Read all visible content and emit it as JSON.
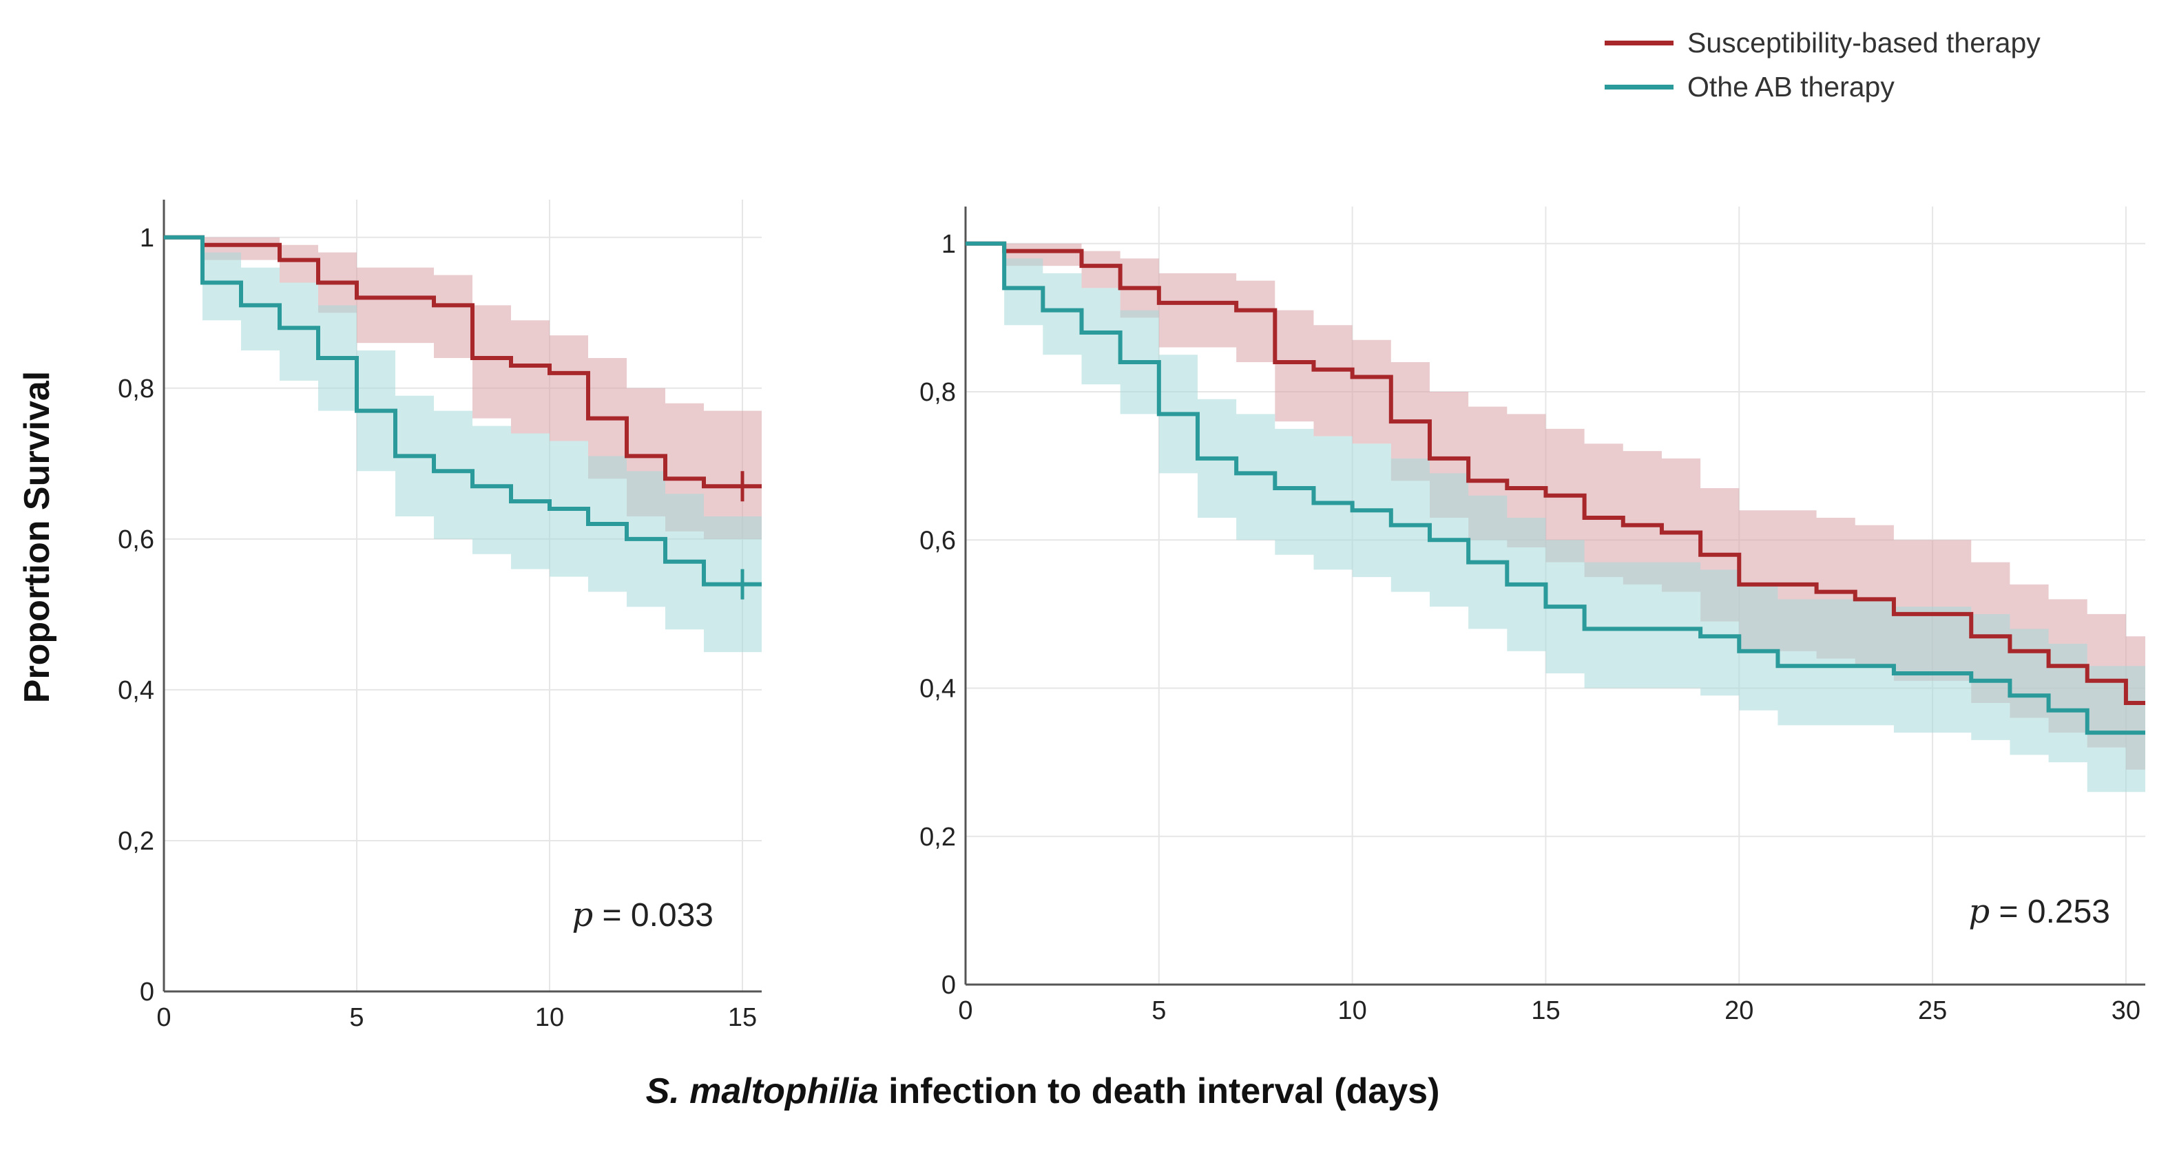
{
  "legend": {
    "items": [
      {
        "label": "Susceptibility-based therapy",
        "color": "#a8272b"
      },
      {
        "label": "Othe AB therapy",
        "color": "#2a9a9a"
      }
    ]
  },
  "ylabel": "Proportion Survival",
  "xlabel_italic": "S. maltophilia",
  "xlabel_rest": " infection to death interval (days)",
  "chart_data": [
    {
      "type": "line",
      "step": true,
      "title": "",
      "ylabel": "Proportion Survival",
      "xlim": [
        0,
        15.5
      ],
      "ylim": [
        0,
        1.05
      ],
      "xticks": [
        0,
        5,
        10,
        15
      ],
      "yticks": [
        0,
        0.2,
        0.4,
        0.6,
        0.8,
        1
      ],
      "ytick_labels": [
        "0",
        "0,2",
        "0,4",
        "0,6",
        "0,8",
        "1"
      ],
      "grid": true,
      "annotation": {
        "p": "p",
        "text": " = 0.033"
      },
      "series": [
        {
          "name": "Susceptibility-based therapy",
          "color": "#a8272b",
          "band": "#d9a3a8",
          "x": [
            0,
            1,
            3,
            4,
            5,
            7,
            8,
            9,
            10,
            11,
            12,
            13,
            14,
            15,
            15.5
          ],
          "y": [
            1,
            0.99,
            0.97,
            0.94,
            0.92,
            0.91,
            0.84,
            0.83,
            0.82,
            0.76,
            0.71,
            0.68,
            0.67,
            0.67,
            0.67
          ],
          "lower": [
            1,
            0.97,
            0.94,
            0.9,
            0.86,
            0.84,
            0.76,
            0.74,
            0.73,
            0.68,
            0.63,
            0.61,
            0.6,
            0.6,
            0.6
          ],
          "upper": [
            1,
            1,
            0.99,
            0.98,
            0.96,
            0.95,
            0.91,
            0.89,
            0.87,
            0.84,
            0.8,
            0.78,
            0.77,
            0.77,
            0.77
          ],
          "censored": [
            15
          ]
        },
        {
          "name": "Othe AB therapy",
          "color": "#2a9a9a",
          "band": "#a7d8d8",
          "x": [
            0,
            1,
            2,
            3,
            4,
            5,
            6,
            7,
            8,
            9,
            10,
            11,
            12,
            13,
            14,
            15,
            15.5
          ],
          "y": [
            1,
            0.94,
            0.91,
            0.88,
            0.84,
            0.77,
            0.71,
            0.69,
            0.67,
            0.65,
            0.64,
            0.62,
            0.6,
            0.57,
            0.54,
            0.54,
            0.54
          ],
          "lower": [
            1,
            0.89,
            0.85,
            0.81,
            0.77,
            0.69,
            0.63,
            0.6,
            0.58,
            0.56,
            0.55,
            0.53,
            0.51,
            0.48,
            0.45,
            0.45,
            0.45
          ],
          "upper": [
            1,
            0.98,
            0.96,
            0.94,
            0.91,
            0.85,
            0.79,
            0.77,
            0.75,
            0.74,
            0.73,
            0.71,
            0.69,
            0.66,
            0.63,
            0.63,
            0.63
          ],
          "censored": [
            15
          ]
        }
      ]
    },
    {
      "type": "line",
      "step": true,
      "title": "",
      "ylabel": "Proportion Survival",
      "xlim": [
        0,
        30.5
      ],
      "ylim": [
        0,
        1.05
      ],
      "xticks": [
        0,
        5,
        10,
        15,
        20,
        25,
        30
      ],
      "yticks": [
        0,
        0.2,
        0.4,
        0.6,
        0.8,
        1
      ],
      "ytick_labels": [
        "0",
        "0,2",
        "0,4",
        "0,6",
        "0,8",
        "1"
      ],
      "grid": true,
      "annotation": {
        "p": "p",
        "text": " = 0.253"
      },
      "series": [
        {
          "name": "Susceptibility-based therapy",
          "color": "#a8272b",
          "band": "#d9a3a8",
          "x": [
            0,
            1,
            3,
            4,
            5,
            7,
            8,
            9,
            10,
            11,
            12,
            13,
            14,
            15,
            16,
            17,
            18,
            19,
            20,
            22,
            23,
            24,
            26,
            27,
            28,
            29,
            30,
            30.5
          ],
          "y": [
            1,
            0.99,
            0.97,
            0.94,
            0.92,
            0.91,
            0.84,
            0.83,
            0.82,
            0.76,
            0.71,
            0.68,
            0.67,
            0.66,
            0.63,
            0.62,
            0.61,
            0.58,
            0.54,
            0.53,
            0.52,
            0.5,
            0.47,
            0.45,
            0.43,
            0.41,
            0.38,
            0.38
          ],
          "lower": [
            1,
            0.97,
            0.94,
            0.9,
            0.86,
            0.84,
            0.76,
            0.74,
            0.73,
            0.68,
            0.63,
            0.6,
            0.59,
            0.57,
            0.55,
            0.54,
            0.53,
            0.49,
            0.45,
            0.44,
            0.43,
            0.41,
            0.38,
            0.36,
            0.34,
            0.32,
            0.29,
            0.29
          ],
          "upper": [
            1,
            1,
            0.99,
            0.98,
            0.96,
            0.95,
            0.91,
            0.89,
            0.87,
            0.84,
            0.8,
            0.78,
            0.77,
            0.75,
            0.73,
            0.72,
            0.71,
            0.67,
            0.64,
            0.63,
            0.62,
            0.6,
            0.57,
            0.54,
            0.52,
            0.5,
            0.47,
            0.47
          ],
          "censored": []
        },
        {
          "name": "Othe AB therapy",
          "color": "#2a9a9a",
          "band": "#a7d8d8",
          "x": [
            0,
            1,
            2,
            3,
            4,
            5,
            6,
            7,
            8,
            9,
            10,
            11,
            12,
            13,
            14,
            15,
            16,
            19,
            20,
            21,
            22,
            24,
            26,
            27,
            28,
            29,
            30.5
          ],
          "y": [
            1,
            0.94,
            0.91,
            0.88,
            0.84,
            0.77,
            0.71,
            0.69,
            0.67,
            0.65,
            0.64,
            0.62,
            0.6,
            0.57,
            0.54,
            0.51,
            0.48,
            0.47,
            0.45,
            0.43,
            0.43,
            0.42,
            0.41,
            0.39,
            0.37,
            0.34,
            0.34
          ],
          "lower": [
            1,
            0.89,
            0.85,
            0.81,
            0.77,
            0.69,
            0.63,
            0.6,
            0.58,
            0.56,
            0.55,
            0.53,
            0.51,
            0.48,
            0.45,
            0.42,
            0.4,
            0.39,
            0.37,
            0.35,
            0.35,
            0.34,
            0.33,
            0.31,
            0.3,
            0.26,
            0.26
          ],
          "upper": [
            1,
            0.98,
            0.96,
            0.94,
            0.91,
            0.85,
            0.79,
            0.77,
            0.75,
            0.74,
            0.73,
            0.71,
            0.69,
            0.66,
            0.63,
            0.6,
            0.57,
            0.56,
            0.54,
            0.52,
            0.52,
            0.51,
            0.5,
            0.48,
            0.46,
            0.43,
            0.43
          ],
          "censored": []
        }
      ]
    }
  ]
}
